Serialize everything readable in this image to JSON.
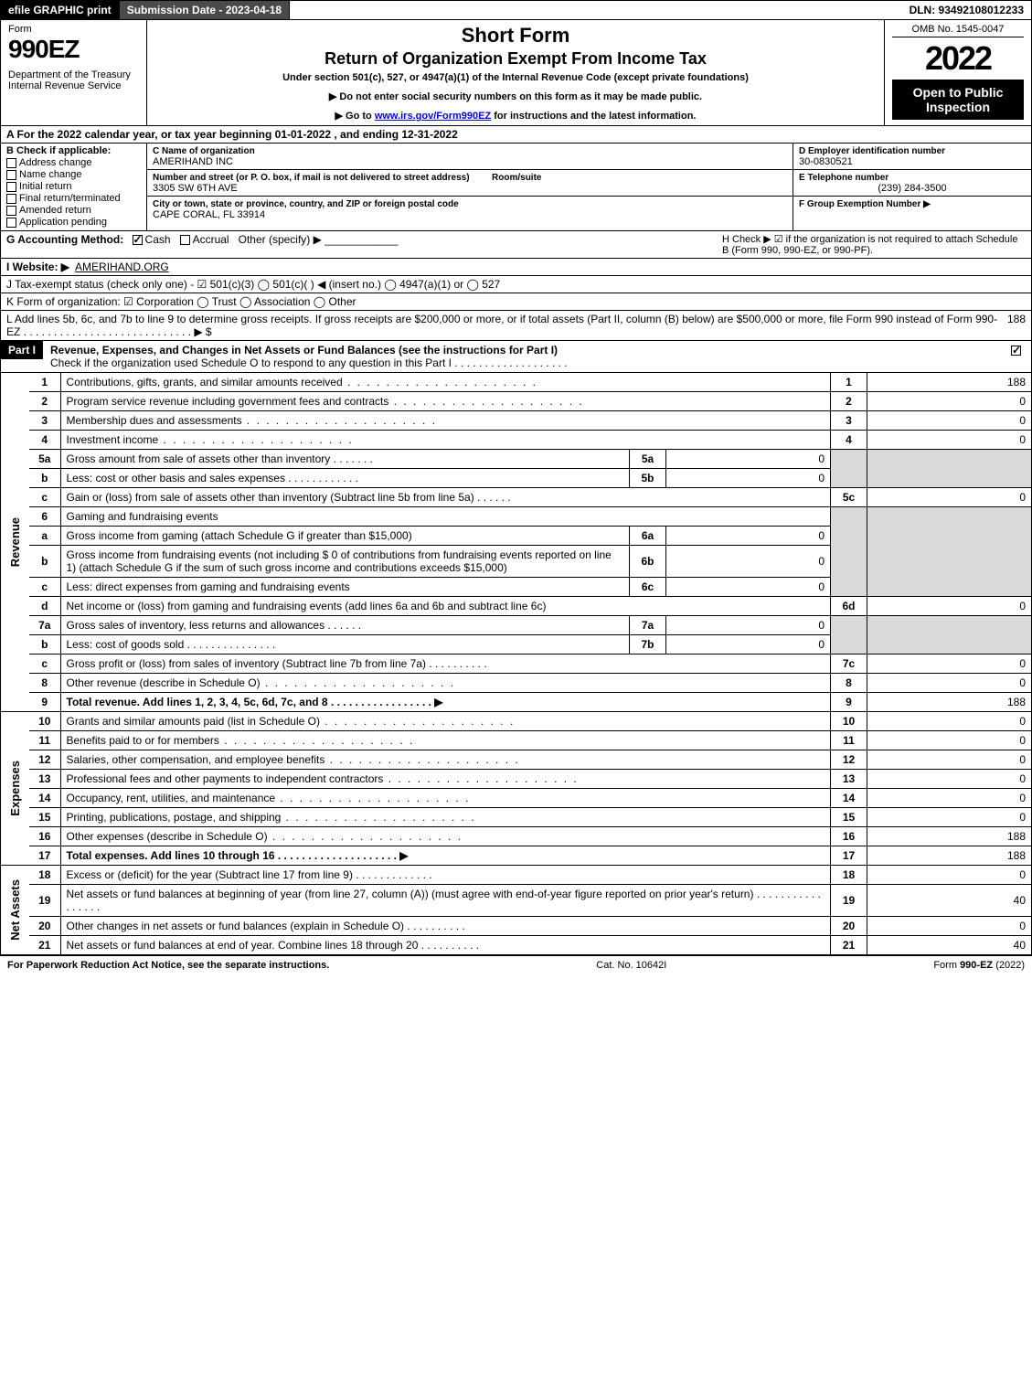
{
  "topbar": {
    "efile": "efile GRAPHIC print",
    "submission": "Submission Date - 2023-04-18",
    "dln": "DLN: 93492108012233"
  },
  "header": {
    "form_label": "Form",
    "form_number": "990EZ",
    "dept": "Department of the Treasury\nInternal Revenue Service",
    "title1": "Short Form",
    "title2": "Return of Organization Exempt From Income Tax",
    "subtitle": "Under section 501(c), 527, or 4947(a)(1) of the Internal Revenue Code (except private foundations)",
    "bullet1": "▶ Do not enter social security numbers on this form as it may be made public.",
    "bullet2_pre": "▶ Go to ",
    "bullet2_link": "www.irs.gov/Form990EZ",
    "bullet2_post": " for instructions and the latest information.",
    "omb": "OMB No. 1545-0047",
    "year": "2022",
    "open": "Open to Public Inspection"
  },
  "rowA": "A  For the 2022 calendar year, or tax year beginning 01-01-2022 , and ending 12-31-2022",
  "B": {
    "label": "B  Check if applicable:",
    "opts": [
      "Address change",
      "Name change",
      "Initial return",
      "Final return/terminated",
      "Amended return",
      "Application pending"
    ]
  },
  "C": {
    "name_lbl": "C Name of organization",
    "name": "AMERIHAND INC",
    "addr_lbl": "Number and street (or P. O. box, if mail is not delivered to street address)",
    "addr": "3305 SW 6TH AVE",
    "room_lbl": "Room/suite",
    "city_lbl": "City or town, state or province, country, and ZIP or foreign postal code",
    "city": "CAPE CORAL, FL  33914"
  },
  "D": {
    "lbl": "D Employer identification number",
    "val": "30-0830521"
  },
  "E": {
    "lbl": "E Telephone number",
    "val": "(239) 284-3500"
  },
  "F": {
    "lbl": "F Group Exemption Number  ▶",
    "val": ""
  },
  "G": {
    "label": "G Accounting Method:",
    "cash": "Cash",
    "accrual": "Accrual",
    "other": "Other (specify) ▶"
  },
  "H": "H   Check ▶ ☑ if the organization is not required to attach Schedule B (Form 990, 990-EZ, or 990-PF).",
  "I": {
    "label": "I Website: ▶",
    "val": "AMERIHAND.ORG"
  },
  "J": "J Tax-exempt status (check only one) - ☑ 501(c)(3)  ◯ 501(c)(  ) ◀ (insert no.)  ◯ 4947(a)(1) or  ◯ 527",
  "K": "K Form of organization:  ☑ Corporation  ◯ Trust  ◯ Association  ◯ Other",
  "L": {
    "text": "L Add lines 5b, 6c, and 7b to line 9 to determine gross receipts. If gross receipts are $200,000 or more, or if total assets (Part II, column (B) below) are $500,000 or more, file Form 990 instead of Form 990-EZ  .  .  .  .  .  .  .  .  .  .  .  .  .  .  .  .  .  .  .  .  .  .  .  .  .  .  .  .  ▶ $",
    "val": "188"
  },
  "partI": {
    "label": "Part I",
    "title": "Revenue, Expenses, and Changes in Net Assets or Fund Balances (see the instructions for Part I)",
    "check": "Check if the organization used Schedule O to respond to any question in this Part I  .  .  .  .  .  .  .  .  .  .  .  .  .  .  .  .  .  .  ."
  },
  "sections": {
    "revenue": "Revenue",
    "expenses": "Expenses",
    "netassets": "Net Assets"
  },
  "lines": {
    "1": {
      "n": "1",
      "d": "Contributions, gifts, grants, and similar amounts received",
      "rn": "1",
      "rv": "188"
    },
    "2": {
      "n": "2",
      "d": "Program service revenue including government fees and contracts",
      "rn": "2",
      "rv": "0"
    },
    "3": {
      "n": "3",
      "d": "Membership dues and assessments",
      "rn": "3",
      "rv": "0"
    },
    "4": {
      "n": "4",
      "d": "Investment income",
      "rn": "4",
      "rv": "0"
    },
    "5a": {
      "n": "5a",
      "d": "Gross amount from sale of assets other than inventory",
      "sl": "5a",
      "sv": "0"
    },
    "5b": {
      "n": "b",
      "d": "Less: cost or other basis and sales expenses",
      "sl": "5b",
      "sv": "0"
    },
    "5c": {
      "n": "c",
      "d": "Gain or (loss) from sale of assets other than inventory (Subtract line 5b from line 5a)",
      "rn": "5c",
      "rv": "0"
    },
    "6": {
      "n": "6",
      "d": "Gaming and fundraising events"
    },
    "6a": {
      "n": "a",
      "d": "Gross income from gaming (attach Schedule G if greater than $15,000)",
      "sl": "6a",
      "sv": "0"
    },
    "6b": {
      "n": "b",
      "d": "Gross income from fundraising events (not including $  0             of contributions from fundraising events reported on line 1) (attach Schedule G if the sum of such gross income and contributions exceeds $15,000)",
      "sl": "6b",
      "sv": "0"
    },
    "6c": {
      "n": "c",
      "d": "Less: direct expenses from gaming and fundraising events",
      "sl": "6c",
      "sv": "0"
    },
    "6d": {
      "n": "d",
      "d": "Net income or (loss) from gaming and fundraising events (add lines 6a and 6b and subtract line 6c)",
      "rn": "6d",
      "rv": "0"
    },
    "7a": {
      "n": "7a",
      "d": "Gross sales of inventory, less returns and allowances",
      "sl": "7a",
      "sv": "0"
    },
    "7b": {
      "n": "b",
      "d": "Less: cost of goods sold",
      "sl": "7b",
      "sv": "0"
    },
    "7c": {
      "n": "c",
      "d": "Gross profit or (loss) from sales of inventory (Subtract line 7b from line 7a)",
      "rn": "7c",
      "rv": "0"
    },
    "8": {
      "n": "8",
      "d": "Other revenue (describe in Schedule O)",
      "rn": "8",
      "rv": "0"
    },
    "9": {
      "n": "9",
      "d": "Total revenue. Add lines 1, 2, 3, 4, 5c, 6d, 7c, and 8   .  .  .  .  .  .  .  .  .  .  .  .  .  .  .  .  .   ▶",
      "rn": "9",
      "rv": "188",
      "bold": true
    },
    "10": {
      "n": "10",
      "d": "Grants and similar amounts paid (list in Schedule O)",
      "rn": "10",
      "rv": "0"
    },
    "11": {
      "n": "11",
      "d": "Benefits paid to or for members",
      "rn": "11",
      "rv": "0"
    },
    "12": {
      "n": "12",
      "d": "Salaries, other compensation, and employee benefits",
      "rn": "12",
      "rv": "0"
    },
    "13": {
      "n": "13",
      "d": "Professional fees and other payments to independent contractors",
      "rn": "13",
      "rv": "0"
    },
    "14": {
      "n": "14",
      "d": "Occupancy, rent, utilities, and maintenance",
      "rn": "14",
      "rv": "0"
    },
    "15": {
      "n": "15",
      "d": "Printing, publications, postage, and shipping",
      "rn": "15",
      "rv": "0"
    },
    "16": {
      "n": "16",
      "d": "Other expenses (describe in Schedule O)",
      "rn": "16",
      "rv": "188"
    },
    "17": {
      "n": "17",
      "d": "Total expenses. Add lines 10 through 16      .  .  .  .  .  .  .  .  .  .  .  .  .  .  .  .  .  .  .  .   ▶",
      "rn": "17",
      "rv": "188",
      "bold": true
    },
    "18": {
      "n": "18",
      "d": "Excess or (deficit) for the year (Subtract line 17 from line 9)",
      "rn": "18",
      "rv": "0"
    },
    "19": {
      "n": "19",
      "d": "Net assets or fund balances at beginning of year (from line 27, column (A)) (must agree with end-of-year figure reported on prior year's return)",
      "rn": "19",
      "rv": "40"
    },
    "20": {
      "n": "20",
      "d": "Other changes in net assets or fund balances (explain in Schedule O)",
      "rn": "20",
      "rv": "0"
    },
    "21": {
      "n": "21",
      "d": "Net assets or fund balances at end of year. Combine lines 18 through 20",
      "rn": "21",
      "rv": "40"
    }
  },
  "footer": {
    "left": "For Paperwork Reduction Act Notice, see the separate instructions.",
    "center": "Cat. No. 10642I",
    "right": "Form 990-EZ (2022)"
  }
}
